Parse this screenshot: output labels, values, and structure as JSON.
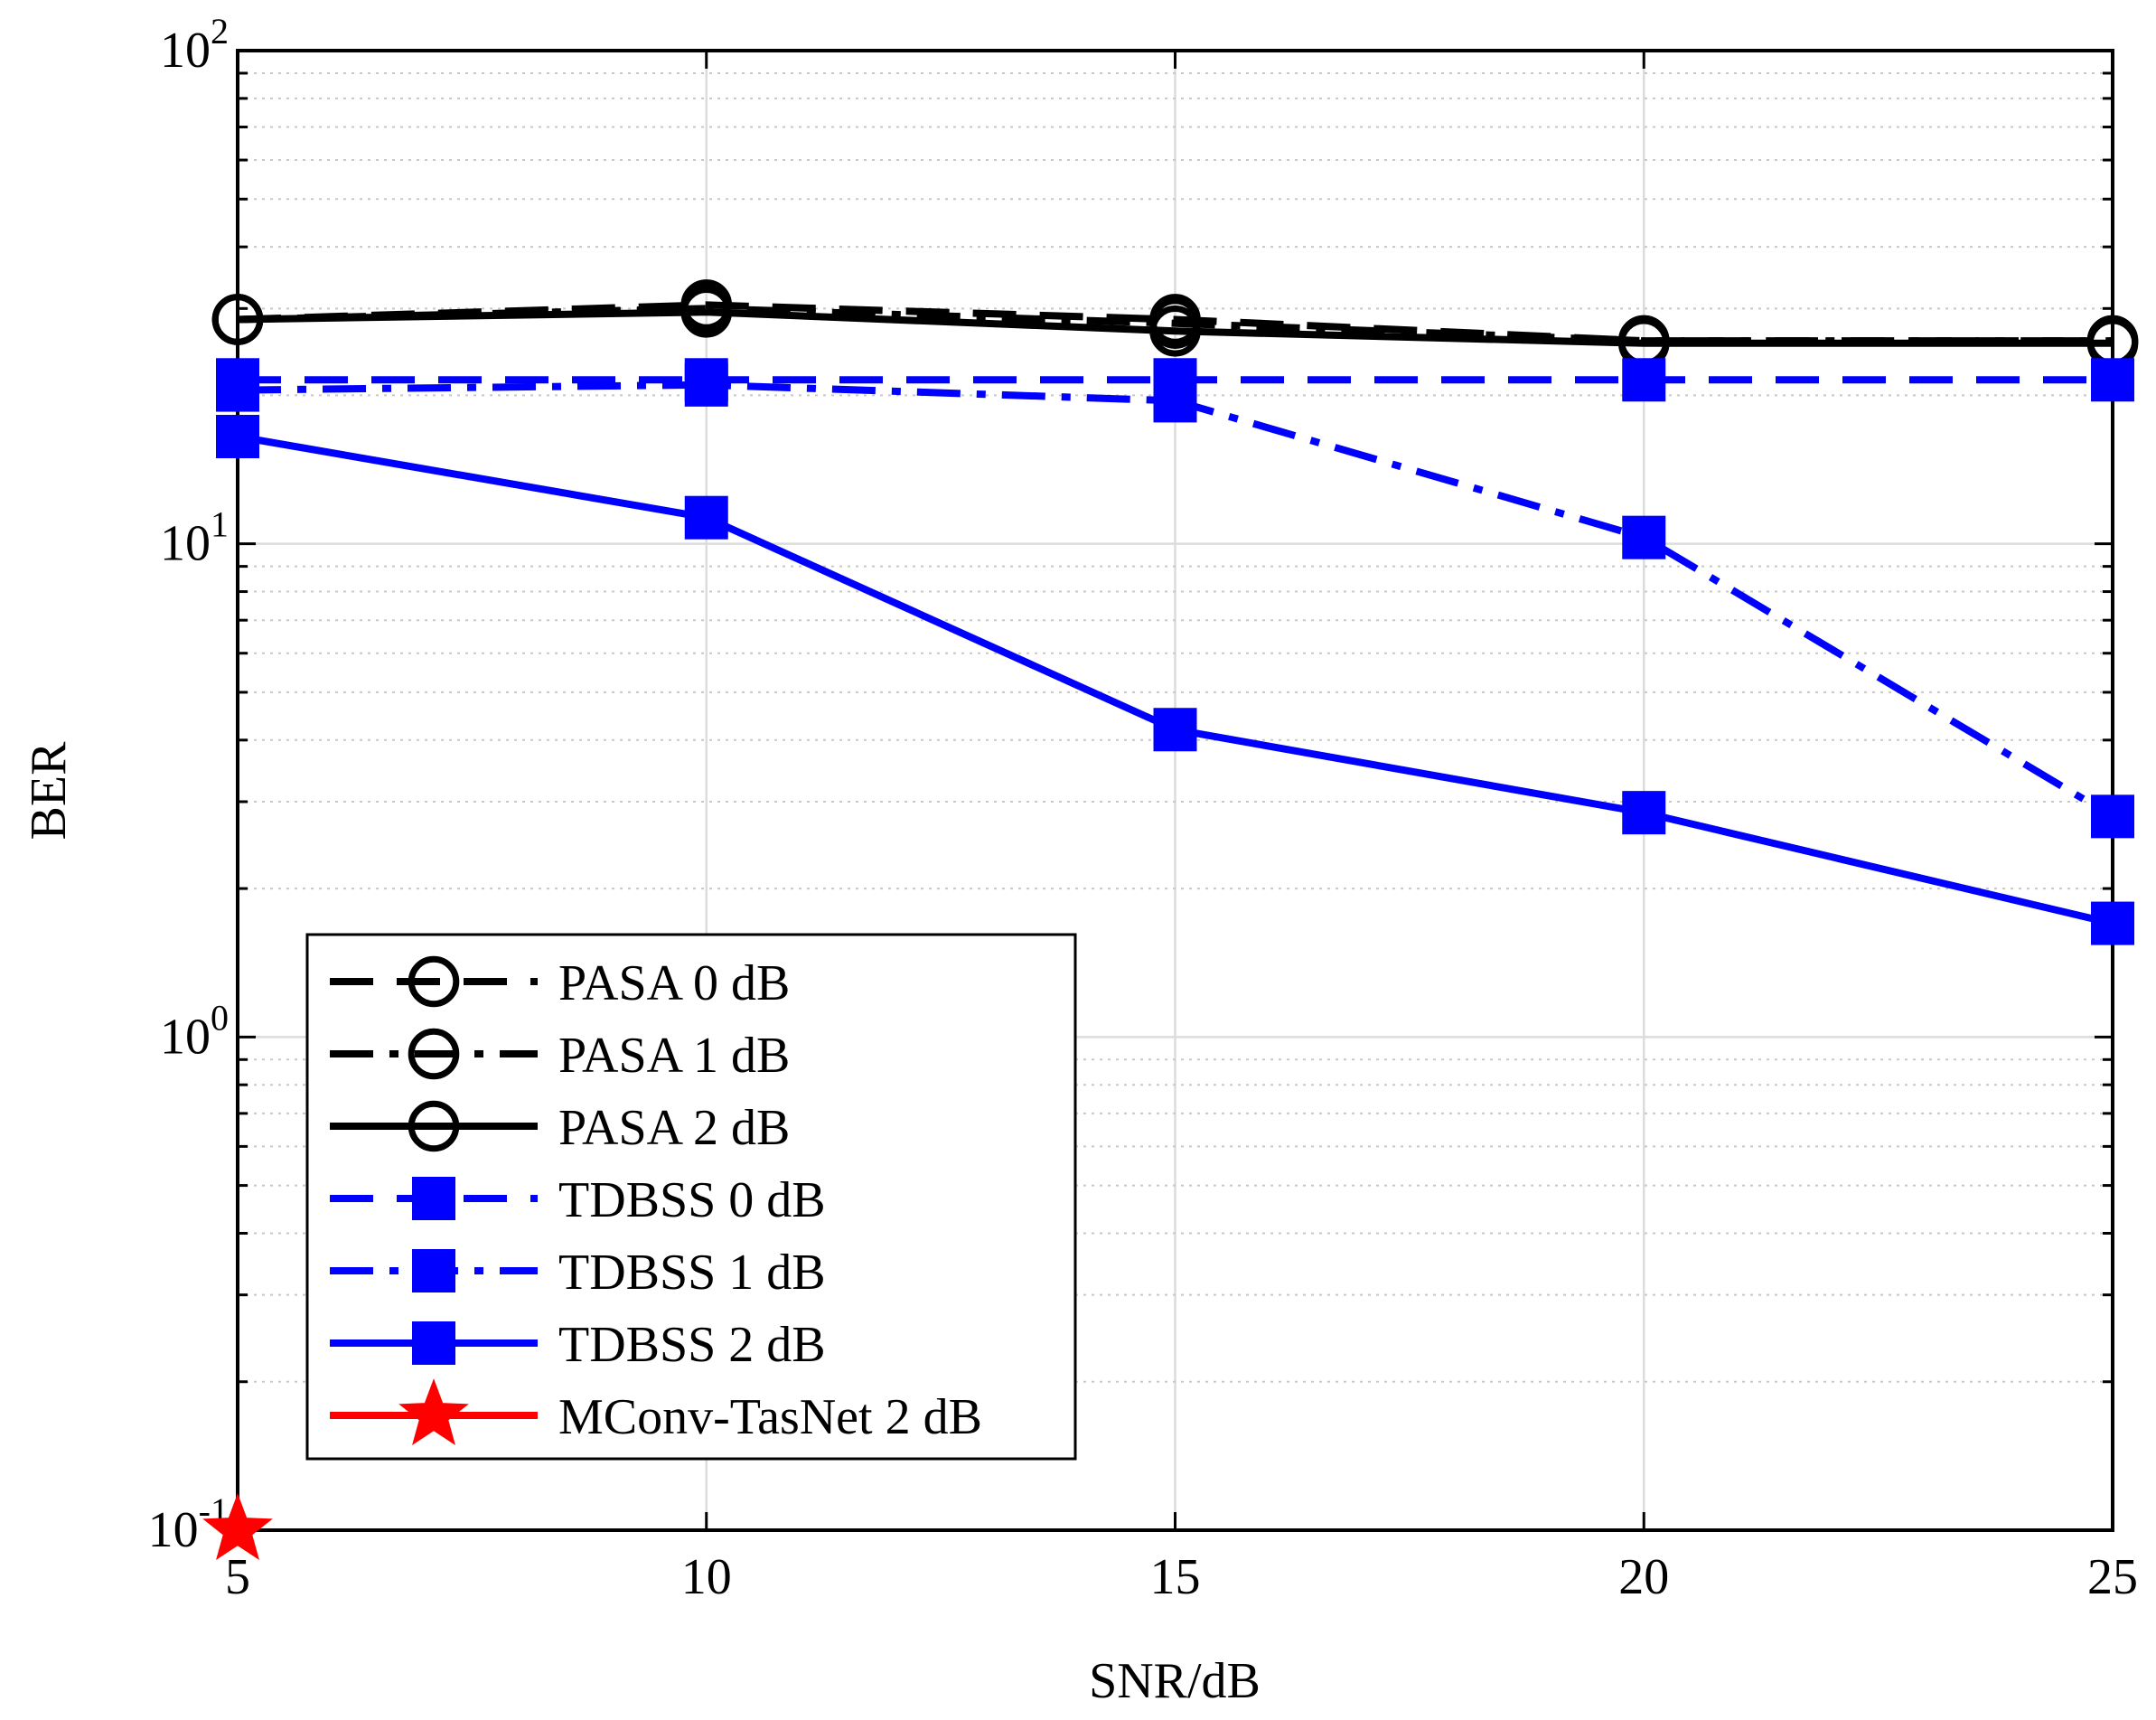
{
  "chart_data": {
    "type": "line",
    "title": "",
    "xlabel": "SNR/dB",
    "ylabel": "BER",
    "xlim": [
      5,
      25
    ],
    "ylim": [
      0.1,
      100
    ],
    "yscale": "log",
    "grid": true,
    "legend_location": "bottom-left",
    "x_ticks": [
      {
        "value": 5,
        "label": "5"
      },
      {
        "value": 10,
        "label": "10"
      },
      {
        "value": 15,
        "label": "15"
      },
      {
        "value": 20,
        "label": "20"
      },
      {
        "value": 25,
        "label": "25"
      }
    ],
    "y_ticks": [
      {
        "value": 0.1,
        "base": "10",
        "exp": "-1"
      },
      {
        "value": 1,
        "base": "10",
        "exp": "0"
      },
      {
        "value": 10,
        "base": "10",
        "exp": "1"
      },
      {
        "value": 100,
        "base": "10",
        "exp": "2"
      }
    ],
    "series": [
      {
        "name": "PASA 0 dB",
        "color": "#000000",
        "dash": "dash",
        "marker": "circle",
        "x": [
          5,
          10,
          15,
          20,
          25
        ],
        "y": [
          28.5,
          30.5,
          28.5,
          25.8,
          25.8
        ]
      },
      {
        "name": "PASA 1 dB",
        "color": "#000000",
        "dash": "dashdot",
        "marker": "circle",
        "x": [
          5,
          10,
          15,
          20,
          25
        ],
        "y": [
          28.5,
          30.0,
          28.0,
          25.8,
          25.8
        ]
      },
      {
        "name": "PASA 2 dB",
        "color": "#000000",
        "dash": "solid",
        "marker": "circle",
        "x": [
          5,
          10,
          15,
          20,
          25
        ],
        "y": [
          28.5,
          29.5,
          27.0,
          25.5,
          25.5
        ]
      },
      {
        "name": "TDBSS 0 dB",
        "color": "#0000ff",
        "dash": "dash",
        "marker": "square",
        "x": [
          5,
          10,
          15,
          20,
          25
        ],
        "y": [
          21.5,
          21.5,
          21.5,
          21.5,
          21.5
        ]
      },
      {
        "name": "TDBSS 1 dB",
        "color": "#0000ff",
        "dash": "dashdot",
        "marker": "square",
        "x": [
          5,
          10,
          15,
          20,
          25
        ],
        "y": [
          20.5,
          21.0,
          19.5,
          10.3,
          2.8
        ]
      },
      {
        "name": "TDBSS 2 dB",
        "color": "#0000ff",
        "dash": "solid",
        "marker": "square",
        "x": [
          5,
          10,
          15,
          20,
          25
        ],
        "y": [
          16.5,
          11.3,
          4.2,
          2.85,
          1.7
        ]
      },
      {
        "name": "MConv-TasNet 2 dB",
        "color": "#ff0000",
        "dash": "solid",
        "marker": "star",
        "x": [
          5
        ],
        "y": [
          0.1
        ]
      }
    ]
  }
}
